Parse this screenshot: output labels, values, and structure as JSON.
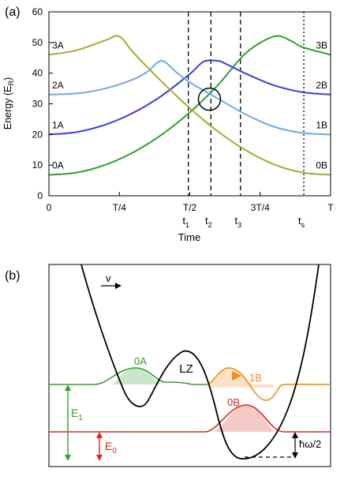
{
  "chart_data": [
    {
      "panel_label": "(a)",
      "type": "line",
      "xlabel": "Time",
      "ylabel": "Energy (E",
      "ylabel_sub": "R",
      "ylabel_close": ")",
      "xlim": [
        0,
        1
      ],
      "ylim": [
        0,
        60
      ],
      "yticks": [
        "0",
        "10",
        "20",
        "30",
        "40",
        "50",
        "60"
      ],
      "xticks": [
        {
          "x": 0,
          "label": "0"
        },
        {
          "x": 0.25,
          "label": "T/4"
        },
        {
          "x": 0.5,
          "label": "T/2"
        },
        {
          "x": 0.75,
          "label": "3T/4"
        },
        {
          "x": 1,
          "label": "T"
        }
      ],
      "time_markers": [
        {
          "x": 0.495,
          "label": "t",
          "sub": "1",
          "style": "dashed"
        },
        {
          "x": 0.575,
          "label": "t",
          "sub": "2",
          "style": "dashed"
        },
        {
          "x": 0.68,
          "label": "t",
          "sub": "3",
          "style": "dashed"
        },
        {
          "x": 0.905,
          "label": "t",
          "sub": "s",
          "style": "dotted"
        }
      ],
      "series": [
        {
          "name": "0A",
          "end_label": "3B",
          "color": "#2ea02e",
          "end_color": "#9a5a1a",
          "x": [
            0,
            0.1,
            0.2,
            0.3,
            0.4,
            0.5,
            0.6,
            0.7,
            0.8,
            0.86,
            0.9,
            1
          ],
          "y": [
            6.8,
            7.6,
            10.1,
            14.2,
            19.9,
            27.2,
            36.1,
            46.6,
            52,
            50.5,
            48.5,
            46
          ]
        },
        {
          "name": "1A",
          "end_label": "2B",
          "color": "#3a3de0",
          "end_color": "#c49af0",
          "x": [
            0,
            0.1,
            0.2,
            0.3,
            0.4,
            0.5,
            0.55,
            0.6,
            0.62,
            0.7,
            0.8,
            0.9,
            1
          ],
          "y": [
            20,
            20.8,
            23.2,
            27.1,
            32.6,
            39.7,
            43.8,
            44,
            43.4,
            39.8,
            36,
            33.8,
            33
          ]
        },
        {
          "name": "2A",
          "end_label": "1B",
          "color": "#6aaae8",
          "end_color": "#f08c1a",
          "x": [
            0,
            0.1,
            0.2,
            0.3,
            0.35,
            0.4,
            0.45,
            0.5,
            0.6,
            0.7,
            0.8,
            0.9,
            1
          ],
          "y": [
            33,
            33.4,
            35,
            38,
            40.5,
            44,
            40.5,
            37,
            31.7,
            26.5,
            22.5,
            20.5,
            20
          ]
        },
        {
          "name": "3A",
          "end_label": "0B",
          "color": "#a8a830",
          "end_color": "#d8281e",
          "x": [
            0,
            0.1,
            0.2,
            0.25,
            0.3,
            0.4,
            0.5,
            0.6,
            0.7,
            0.8,
            0.9,
            1
          ],
          "y": [
            46,
            47.5,
            50.7,
            52,
            46.7,
            37.3,
            28.6,
            21,
            14.8,
            10.2,
            7.6,
            6.8
          ]
        }
      ],
      "annotations": [
        {
          "type": "circle",
          "x": 0.57,
          "y": 31.5
        }
      ]
    },
    {
      "panel_label": "(b)",
      "type": "line",
      "velocity_label": "v",
      "arrow_label": "LZ",
      "wavepackets": [
        {
          "name": "0A",
          "color": "#2ea02e"
        },
        {
          "name": "1B",
          "color": "#f08c1a"
        },
        {
          "name": "0B",
          "color": "#d8281e"
        }
      ],
      "energy_levels": [
        {
          "label": "E",
          "sub": "1",
          "color": "#2ea02e"
        },
        {
          "label": "E",
          "sub": "0",
          "color": "#d8281e"
        }
      ],
      "hbar_label": "ħω/2"
    }
  ]
}
